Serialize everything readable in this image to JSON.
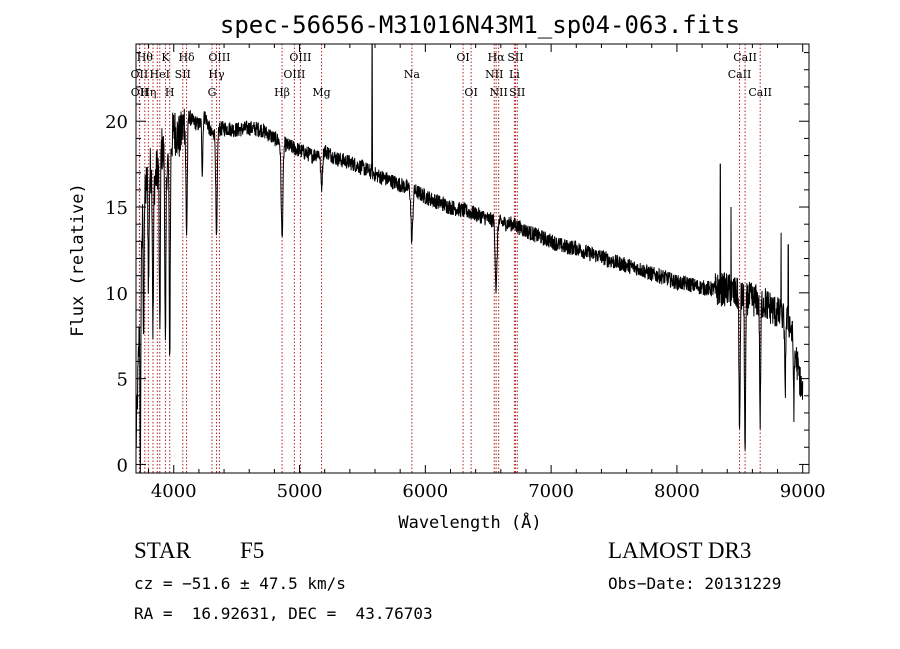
{
  "chart_data": {
    "type": "line",
    "title": "spec-56656-M31016N43M1_sp04-063.fits",
    "xlabel": "Wavelength (Å)",
    "ylabel": "Flux (relative)",
    "xlim": [
      3700,
      9050
    ],
    "ylim": [
      -0.5,
      24.5
    ],
    "xticks": [
      4000,
      5000,
      6000,
      7000,
      8000,
      9000
    ],
    "yticks": [
      0,
      5,
      10,
      15,
      20
    ],
    "xtick_labels": [
      "4000",
      "5000",
      "6000",
      "7000",
      "8000",
      "9000"
    ],
    "ytick_labels": [
      "0",
      "5",
      "10",
      "15",
      "20"
    ],
    "spectrum_continuum": {
      "x": [
        3700,
        3750,
        3800,
        3850,
        3900,
        3950,
        4000,
        4050,
        4100,
        4150,
        4200,
        4250,
        4300,
        4350,
        4400,
        4500,
        4600,
        4700,
        4800,
        4900,
        5000,
        5100,
        5200,
        5300,
        5400,
        5500,
        5600,
        5700,
        5800,
        5900,
        6000,
        6100,
        6200,
        6300,
        6400,
        6500,
        6600,
        6700,
        6800,
        6900,
        7000,
        7100,
        7200,
        7300,
        7400,
        7500,
        7600,
        7700,
        7800,
        7900,
        8000,
        8100,
        8200,
        8300,
        8400,
        8500,
        8600,
        8700,
        8800,
        8900,
        9000
      ],
      "y": [
        1.0,
        14.0,
        17.5,
        16.5,
        18.5,
        17.5,
        19.5,
        19.0,
        20.5,
        20.0,
        19.8,
        20.3,
        19.2,
        19.5,
        19.6,
        19.5,
        19.6,
        19.5,
        19.0,
        18.6,
        18.3,
        18.0,
        18.3,
        17.8,
        17.6,
        17.3,
        16.9,
        16.6,
        16.3,
        16.0,
        15.6,
        15.3,
        15.0,
        14.8,
        14.6,
        14.3,
        14.1,
        14.0,
        13.6,
        13.3,
        13.0,
        12.7,
        12.6,
        12.3,
        12.1,
        11.8,
        11.6,
        11.4,
        11.1,
        10.9,
        10.6,
        10.5,
        10.3,
        10.2,
        10.2,
        9.8,
        9.6,
        9.4,
        8.8,
        8.2,
        4.0
      ]
    },
    "absorption_features": [
      {
        "x": 3735,
        "depth": 12.0,
        "width": 4
      },
      {
        "x": 3760,
        "depth": 8.0,
        "width": 4
      },
      {
        "x": 3800,
        "depth": 7.0,
        "width": 6
      },
      {
        "x": 3835,
        "depth": 9.0,
        "width": 6
      },
      {
        "x": 3889,
        "depth": 10.5,
        "width": 6
      },
      {
        "x": 3934,
        "depth": 11.5,
        "width": 6
      },
      {
        "x": 3968,
        "depth": 12.0,
        "width": 6
      },
      {
        "x": 4102,
        "depth": 7.0,
        "width": 8
      },
      {
        "x": 4227,
        "depth": 3.0,
        "width": 6
      },
      {
        "x": 4340,
        "depth": 6.5,
        "width": 8
      },
      {
        "x": 4861,
        "depth": 5.5,
        "width": 10
      },
      {
        "x": 5175,
        "depth": 2.0,
        "width": 10
      },
      {
        "x": 5893,
        "depth": 3.0,
        "width": 10
      },
      {
        "x": 6563,
        "depth": 4.0,
        "width": 10
      },
      {
        "x": 8498,
        "depth": 8.5,
        "width": 6
      },
      {
        "x": 8542,
        "depth": 9.5,
        "width": 6
      },
      {
        "x": 8662,
        "depth": 7.0,
        "width": 6
      },
      {
        "x": 8860,
        "depth": 4.5,
        "width": 5
      },
      {
        "x": 8930,
        "depth": 3.5,
        "width": 5
      }
    ],
    "emission_spikes": [
      {
        "x": 5577,
        "height": 24.5
      },
      {
        "x": 8345,
        "height": 17.5
      },
      {
        "x": 8430,
        "height": 15.0
      },
      {
        "x": 8828,
        "height": 13.5
      },
      {
        "x": 8885,
        "height": 12.8
      }
    ],
    "line_markers": [
      {
        "x": 3727,
        "label": "OII",
        "row": 2
      },
      {
        "x": 3729,
        "label": "OII",
        "row": 3
      },
      {
        "x": 3770,
        "label": "Hθ",
        "row": 1
      },
      {
        "x": 3798,
        "label": "Hη",
        "row": 3
      },
      {
        "x": 3835,
        "label": "",
        "row": 0
      },
      {
        "x": 3869,
        "label": "",
        "row": 0
      },
      {
        "x": 3889,
        "label": "HeI",
        "row": 2
      },
      {
        "x": 3934,
        "label": "K",
        "row": 1
      },
      {
        "x": 3968,
        "label": "H",
        "row": 3
      },
      {
        "x": 4072,
        "label": "SII",
        "row": 2
      },
      {
        "x": 4102,
        "label": "Hδ",
        "row": 1
      },
      {
        "x": 4304,
        "label": "G",
        "row": 3
      },
      {
        "x": 4340,
        "label": "Hγ",
        "row": 2
      },
      {
        "x": 4363,
        "label": "OIII",
        "row": 1
      },
      {
        "x": 4861,
        "label": "Hβ",
        "row": 3
      },
      {
        "x": 4959,
        "label": "OIII",
        "row": 2
      },
      {
        "x": 5007,
        "label": "OIII",
        "row": 1
      },
      {
        "x": 5175,
        "label": "Mg",
        "row": 3
      },
      {
        "x": 5893,
        "label": "Na",
        "row": 2
      },
      {
        "x": 6300,
        "label": "OI",
        "row": 1
      },
      {
        "x": 6364,
        "label": "OI",
        "row": 3
      },
      {
        "x": 6548,
        "label": "NII",
        "row": 2
      },
      {
        "x": 6563,
        "label": "Hα",
        "row": 1
      },
      {
        "x": 6583,
        "label": "NII",
        "row": 3
      },
      {
        "x": 6708,
        "label": "Li",
        "row": 2
      },
      {
        "x": 6717,
        "label": "SII",
        "row": 1
      },
      {
        "x": 6731,
        "label": "SII",
        "row": 3
      },
      {
        "x": 8498,
        "label": "CaII",
        "row": 2
      },
      {
        "x": 8542,
        "label": "CaII",
        "row": 1
      },
      {
        "x": 8662,
        "label": "CaII",
        "row": 3
      }
    ],
    "colors": {
      "spectrum": "#000000",
      "markers": "#b22222",
      "marker_text": "#000000"
    }
  },
  "info": {
    "object_class": "STAR",
    "subclass": "F5",
    "survey": "LAMOST DR3",
    "redshift": "cz = −51.6 ± 47.5 km/s",
    "obs_date": "Obs−Date: 20131229",
    "coords": "RA =  16.92631, DEC =  43.76703"
  }
}
